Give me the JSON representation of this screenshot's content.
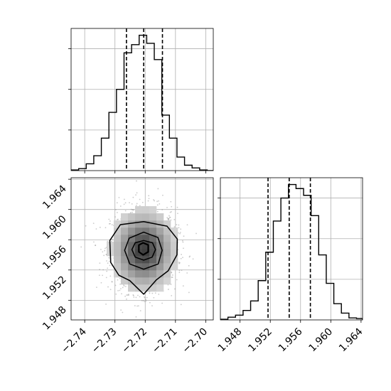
{
  "chart_data": {
    "type": "corner",
    "parameters": 2,
    "grid": true,
    "quantile_style": "dashed",
    "x_ticks": [
      -2.74,
      -2.73,
      -2.72,
      -2.71,
      -2.7
    ],
    "x_tick_labels": [
      "−2.74",
      "−2.73",
      "−2.72",
      "−2.71",
      "−2.70"
    ],
    "y_ticks": [
      1.948,
      1.952,
      1.956,
      1.96,
      1.964
    ],
    "y_tick_labels": [
      "1.948",
      "1.952",
      "1.956",
      "1.960",
      "1.964"
    ],
    "histograms": [
      {
        "param_index": 0,
        "xlim": [
          -2.7445,
          -2.6975
        ],
        "ymax": 1.05,
        "bins": [
          -2.7445,
          -2.742,
          -2.7395,
          -2.737,
          -2.7345,
          -2.732,
          -2.7295,
          -2.727,
          -2.7245,
          -2.722,
          -2.7195,
          -2.717,
          -2.7145,
          -2.712,
          -2.7095,
          -2.707,
          -2.7045,
          -2.702,
          -2.6995,
          -2.6975
        ],
        "counts": [
          0.005,
          0.015,
          0.05,
          0.11,
          0.24,
          0.43,
          0.6,
          0.87,
          0.93,
          1.0,
          0.94,
          0.82,
          0.41,
          0.24,
          0.1,
          0.04,
          0.02,
          0.005,
          0.0
        ],
        "quantiles": [
          -2.7262,
          -2.7205,
          -2.7143
        ]
      },
      {
        "param_index": 1,
        "xlim": [
          1.9454,
          1.9642
        ],
        "ymax": 1.05,
        "bins": [
          1.9454,
          1.9464,
          1.9474,
          1.9484,
          1.9494,
          1.9504,
          1.9514,
          1.9524,
          1.9534,
          1.9544,
          1.9554,
          1.9564,
          1.9574,
          1.9584,
          1.9594,
          1.9604,
          1.9614,
          1.9624,
          1.9634,
          1.9642
        ],
        "counts": [
          0.005,
          0.02,
          0.035,
          0.07,
          0.14,
          0.29,
          0.5,
          0.73,
          0.9,
          1.0,
          0.97,
          0.92,
          0.77,
          0.48,
          0.27,
          0.12,
          0.05,
          0.015,
          0.01
        ],
        "quantiles": [
          1.9517,
          1.9545,
          1.9573
        ]
      }
    ],
    "scatter_2d": {
      "xlim": [
        -2.7445,
        -2.6975
      ],
      "ylim": [
        1.9454,
        1.9642
      ],
      "center": [
        -2.7205,
        1.9546
      ],
      "sigma": [
        0.0055,
        0.0028
      ],
      "sample_count": 1500,
      "contours": [
        {
          "level": "outer",
          "x": [
            -2.7205,
            -2.7128,
            -2.7094,
            -2.7095,
            -2.7124,
            -2.7163,
            -2.7205,
            -2.7251,
            -2.7287,
            -2.7314,
            -2.7317,
            -2.7282,
            -2.7205
          ],
          "y": [
            1.9584,
            1.9578,
            1.9561,
            1.954,
            1.9519,
            1.9507,
            1.9488,
            1.9506,
            1.9513,
            1.953,
            1.9559,
            1.958,
            1.9584
          ]
        },
        {
          "level": "middle",
          "x": [
            -2.7205,
            -2.7158,
            -2.7144,
            -2.7157,
            -2.7205,
            -2.7251,
            -2.7268,
            -2.7253,
            -2.7205
          ],
          "y": [
            1.957,
            1.9563,
            1.9546,
            1.9528,
            1.9521,
            1.9528,
            1.9546,
            1.9562,
            1.957
          ]
        },
        {
          "level": "inner",
          "x": [
            -2.7205,
            -2.7176,
            -2.7166,
            -2.7177,
            -2.7205,
            -2.7233,
            -2.7244,
            -2.7233,
            -2.7205
          ],
          "y": [
            1.9559,
            1.9556,
            1.9547,
            1.9537,
            1.9533,
            1.9537,
            1.9547,
            1.9556,
            1.9559
          ]
        },
        {
          "level": "core",
          "x": [
            -2.7207,
            -2.719,
            -2.719,
            -2.7207,
            -2.7221,
            -2.7221,
            -2.7207
          ],
          "y": [
            1.9556,
            1.9553,
            1.9544,
            1.954,
            1.9544,
            1.9553,
            1.9556
          ]
        }
      ]
    }
  }
}
